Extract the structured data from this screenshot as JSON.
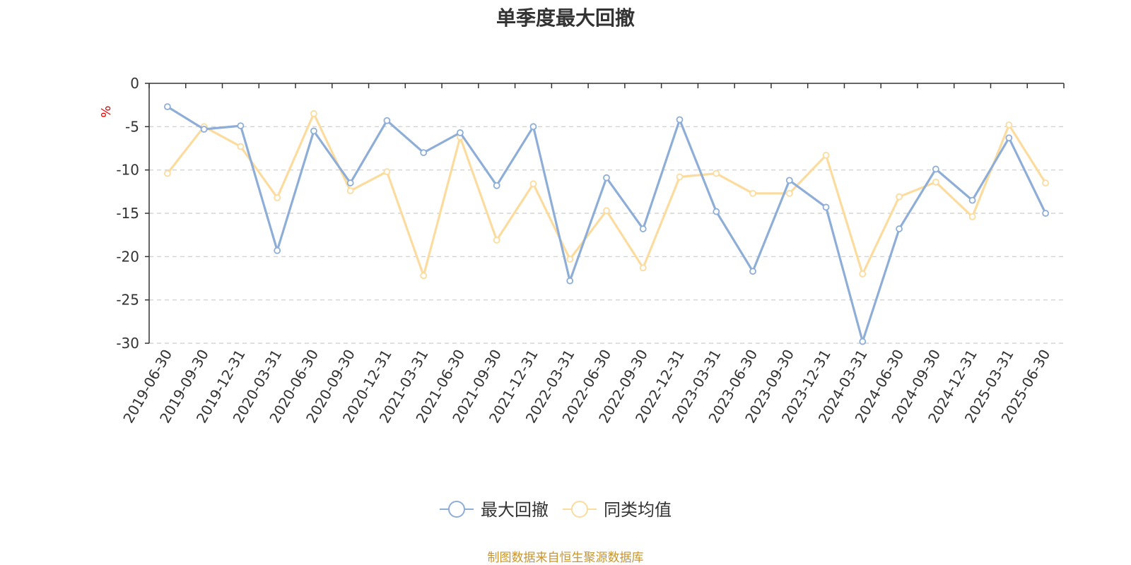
{
  "chart_data": {
    "type": "line",
    "title": "单季度最大回撤",
    "ylabel": "%",
    "ylim": [
      -30,
      0
    ],
    "yticks": [
      0,
      -5,
      -10,
      -15,
      -20,
      -25,
      -30
    ],
    "categories": [
      "2019-06-30",
      "2019-09-30",
      "2019-12-31",
      "2020-03-31",
      "2020-06-30",
      "2020-09-30",
      "2020-12-31",
      "2021-03-31",
      "2021-06-30",
      "2021-09-30",
      "2021-12-31",
      "2022-03-31",
      "2022-06-30",
      "2022-09-30",
      "2022-12-31",
      "2023-03-31",
      "2023-06-30",
      "2023-09-30",
      "2023-12-31",
      "2024-03-31",
      "2024-06-30",
      "2024-09-30",
      "2024-12-31",
      "2025-03-31",
      "2025-06-30"
    ],
    "series": [
      {
        "name": "最大回撤",
        "color": "#8eaed8",
        "values": [
          -2.7,
          -5.3,
          -4.9,
          -19.3,
          -5.5,
          -11.5,
          -4.3,
          -8.0,
          -5.7,
          -11.8,
          -5.0,
          -22.8,
          -10.9,
          -16.8,
          -4.2,
          -14.8,
          -21.7,
          -11.2,
          -14.3,
          -29.8,
          -16.8,
          -9.9,
          -13.5,
          -6.3,
          -15.0
        ]
      },
      {
        "name": "同类均值",
        "color": "#fbdc9e",
        "values": [
          -10.4,
          -5.0,
          -7.3,
          -13.2,
          -3.5,
          -12.4,
          -10.2,
          -22.2,
          -6.2,
          -18.1,
          -11.6,
          -20.3,
          -14.7,
          -21.3,
          -10.8,
          -10.4,
          -12.7,
          -12.7,
          -8.3,
          -22.0,
          -13.1,
          -11.4,
          -15.4,
          -4.8,
          -11.5
        ]
      }
    ],
    "grid": "dashed-horizontal",
    "legend_position": "bottom-center"
  },
  "source_note": "制图数据来自恒生聚源数据库"
}
